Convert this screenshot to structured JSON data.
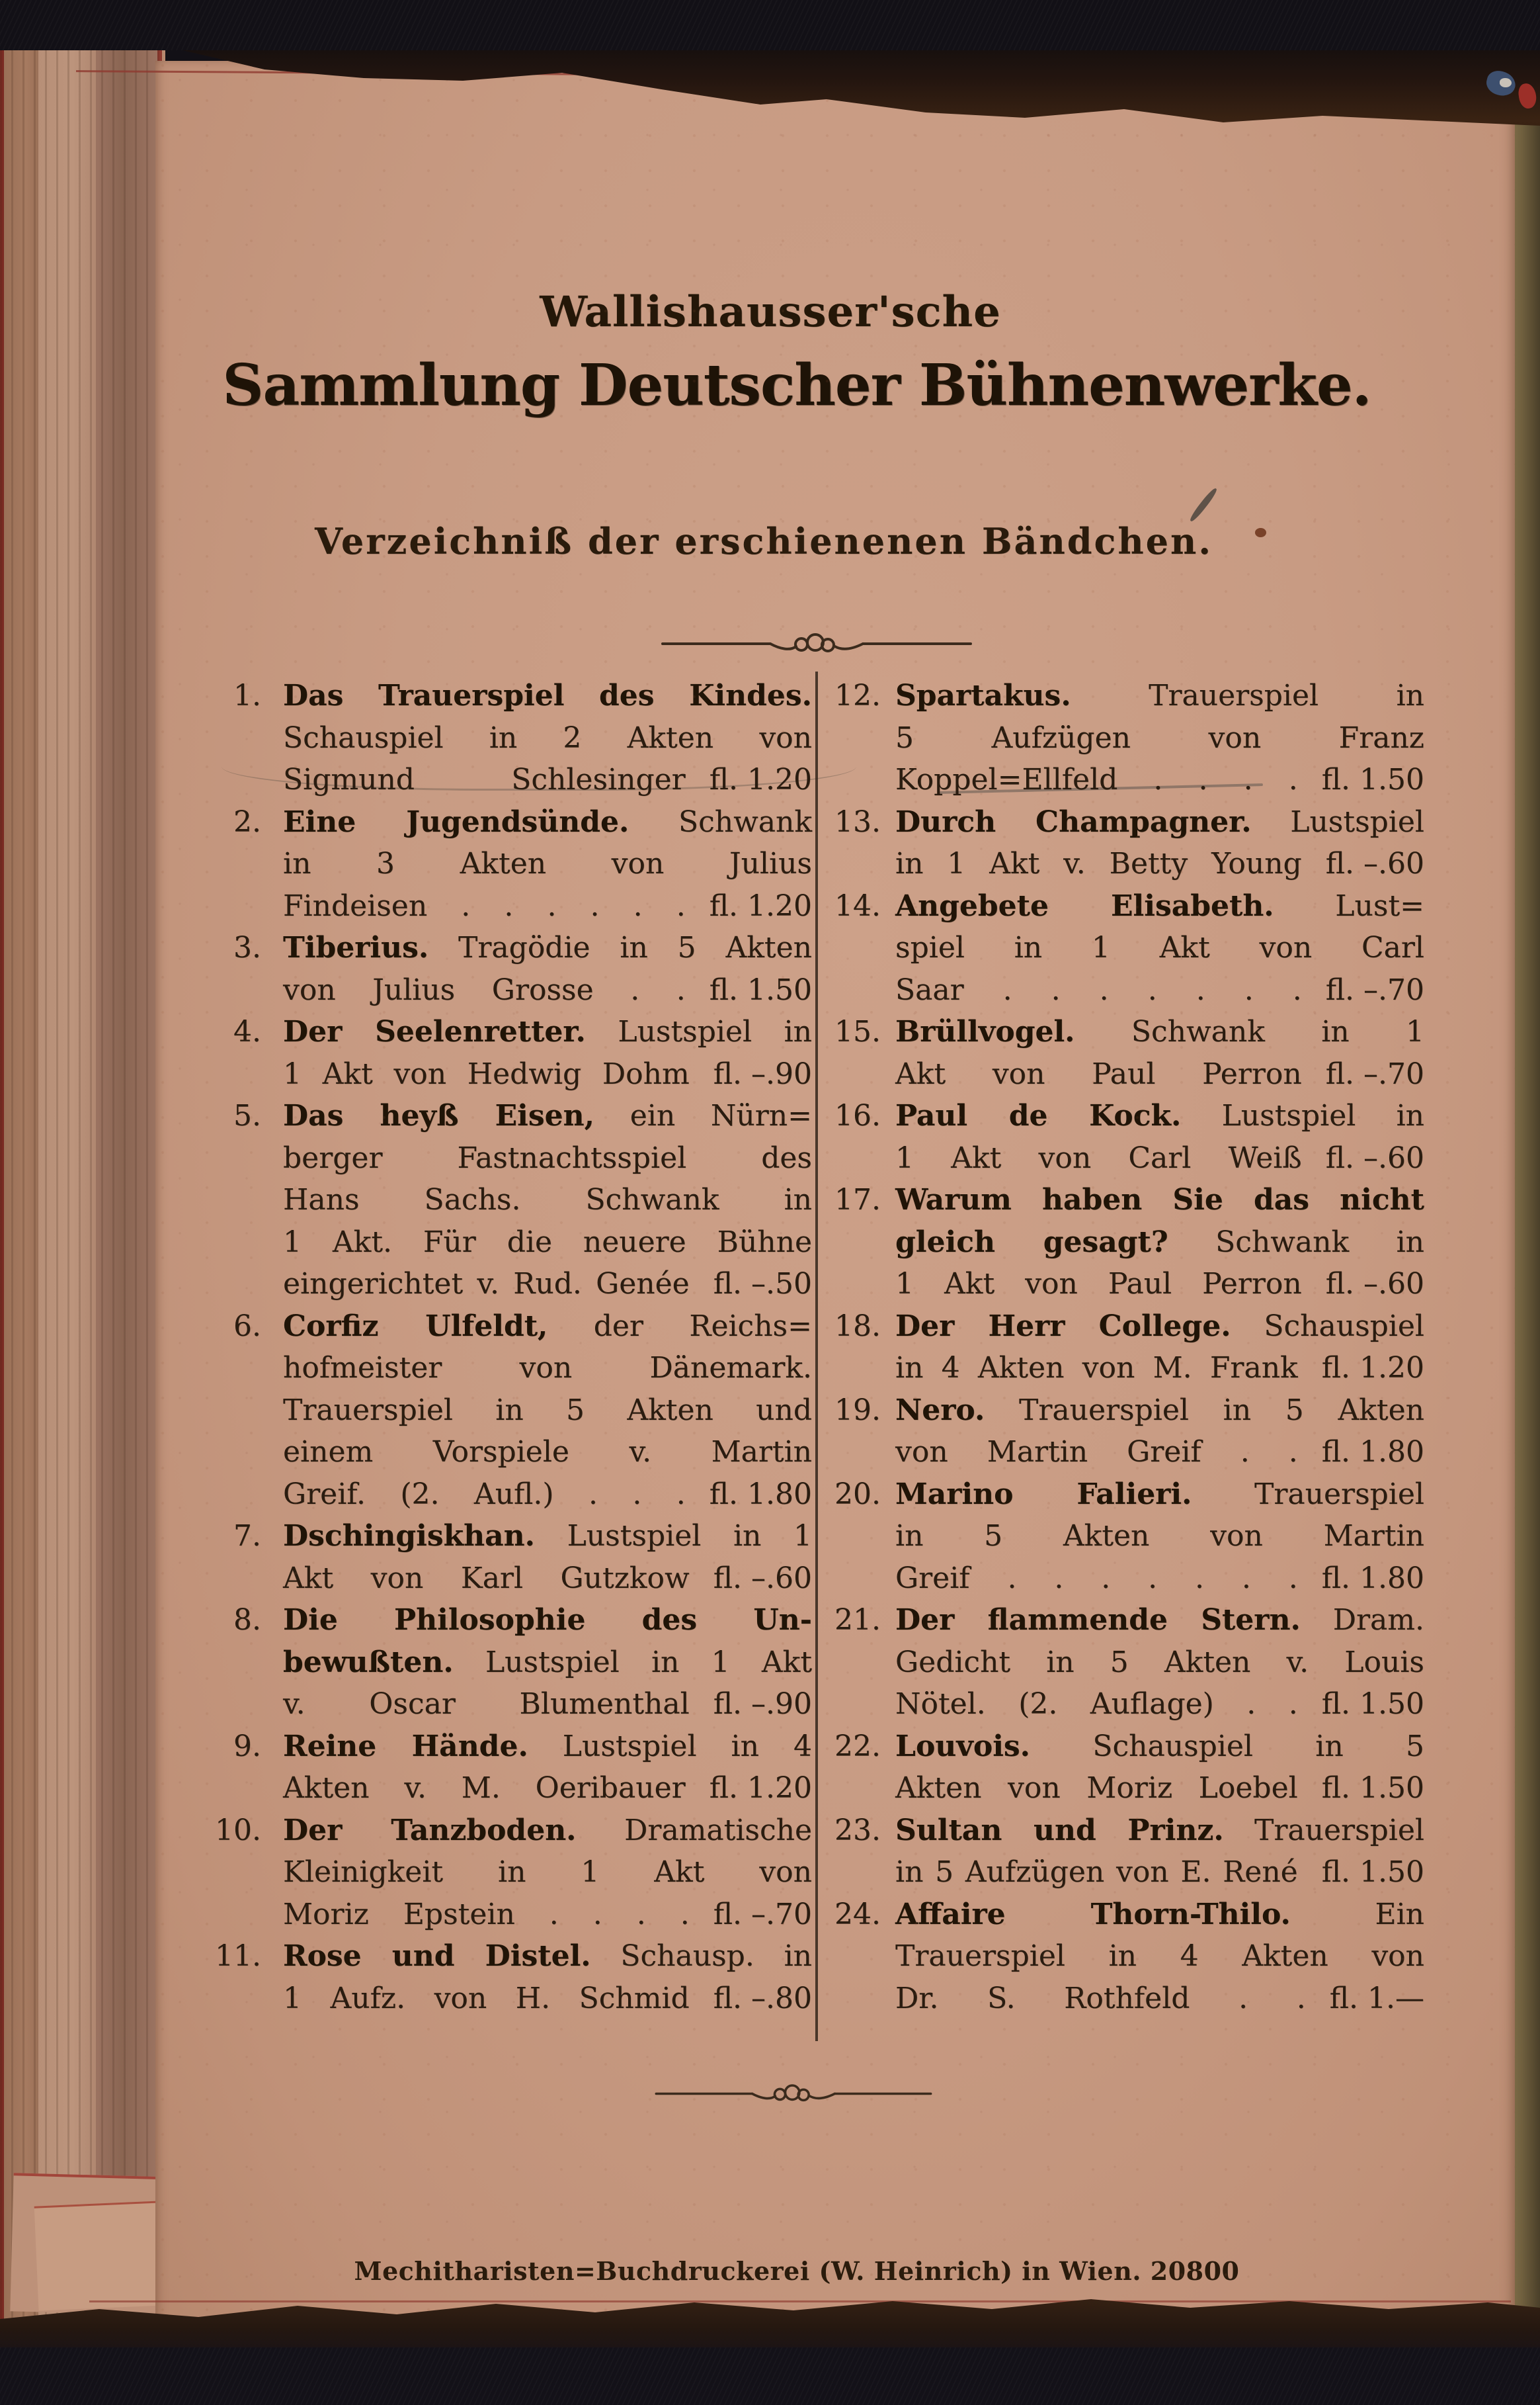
{
  "header": {
    "publisher": "Wallishausser'sche",
    "title": "Sammlung Deutscher Bühnenwerke.",
    "subtitle": "Verzeichniß der erschienenen Bändchen."
  },
  "footer": {
    "imprint": "Mechitharisten=Buchdruckerei (W. Heinrich) in Wien. 20800"
  },
  "colors": {
    "paper": "#c89b83",
    "ink": "#2a1c10",
    "red_edge_rule": "#8e3a30",
    "cover_cloth": "#131118",
    "right_edge": "#7d6c47"
  },
  "catalog": {
    "currency": "fl.",
    "columns": [
      {
        "entries": [
          {
            "n": "1.",
            "lines": [
              {
                "b": "Das Trauerspiel des Kindes."
              },
              {
                "t": "Schauspiel in 2 Akten von"
              },
              {
                "t": "Sigmund Schlesinger",
                "p": "fl. 1.20"
              }
            ]
          },
          {
            "n": "2.",
            "lines": [
              {
                "b": "Eine Jugendsünde.",
                "t": " Schwank"
              },
              {
                "t": "in 3 Akten von Julius"
              },
              {
                "t": "Findeisen . . . . . .",
                "p": "fl. 1.20"
              }
            ]
          },
          {
            "n": "3.",
            "lines": [
              {
                "b": "Tiberius.",
                "t": " Tragödie in 5 Akten"
              },
              {
                "t": "von Julius Grosse . .",
                "p": "fl. 1.50"
              }
            ]
          },
          {
            "n": "4.",
            "lines": [
              {
                "b": "Der Seelenretter.",
                "t": " Lustspiel in"
              },
              {
                "t": "1 Akt von Hedwig Dohm",
                "p": "fl. –.90"
              }
            ]
          },
          {
            "n": "5.",
            "lines": [
              {
                "b": "Das heyß Eisen,",
                "t": " ein Nürn="
              },
              {
                "t": "berger Fastnachtsspiel des"
              },
              {
                "t": "Hans Sachs. Schwank in"
              },
              {
                "t": "1 Akt. Für die neuere Bühne"
              },
              {
                "t": "eingerichtet v. Rud. Genée",
                "p": "fl. –.50"
              }
            ]
          },
          {
            "n": "6.",
            "lines": [
              {
                "b": "Corfiz Ulfeldt,",
                "t": " der Reichs="
              },
              {
                "t": "hofmeister von Dänemark."
              },
              {
                "t": "Trauerspiel in 5 Akten und"
              },
              {
                "t": "einem Vorspiele v. Martin"
              },
              {
                "t": "Greif. (2. Aufl.) . . .",
                "p": "fl. 1.80"
              }
            ]
          },
          {
            "n": "7.",
            "lines": [
              {
                "b": "Dschingiskhan.",
                "t": " Lustspiel in 1"
              },
              {
                "t": "Akt von Karl Gutzkow",
                "p": "fl. –.60"
              }
            ]
          },
          {
            "n": "8.",
            "lines": [
              {
                "b": "Die Philosophie des Un-"
              },
              {
                "b": "bewußten.",
                "t": " Lustspiel in 1 Akt"
              },
              {
                "t": "v. Oscar Blumenthal",
                "p": "fl. –.90"
              }
            ]
          },
          {
            "n": "9.",
            "lines": [
              {
                "b": "Reine Hände.",
                "t": " Lustspiel in 4"
              },
              {
                "t": "Akten v. M. Oeribauer",
                "p": "fl. 1.20"
              }
            ]
          },
          {
            "n": "10.",
            "lines": [
              {
                "b": "Der Tanzboden.",
                "t": " Dramatische"
              },
              {
                "t": "Kleinigkeit in 1 Akt von"
              },
              {
                "t": "Moriz Epstein . . . .",
                "p": "fl. –.70"
              }
            ]
          },
          {
            "n": "11.",
            "lines": [
              {
                "b": "Rose und Distel.",
                "t": " Schausp. in"
              },
              {
                "t": "1 Aufz. von H. Schmid",
                "p": "fl. –.80"
              }
            ]
          }
        ]
      },
      {
        "entries": [
          {
            "n": "12.",
            "lines": [
              {
                "b": "Spartakus.",
                "t": " Trauerspiel in"
              },
              {
                "t": "5 Aufzügen von Franz"
              },
              {
                "t": "Koppel=Ellfeld . . . .",
                "p": "fl. 1.50"
              }
            ]
          },
          {
            "n": "13.",
            "lines": [
              {
                "b": "Durch Champagner.",
                "t": " Lustspiel"
              },
              {
                "t": "in 1 Akt v. Betty Young",
                "p": "fl. –.60"
              }
            ]
          },
          {
            "n": "14.",
            "lines": [
              {
                "b": "Angebete Elisabeth.",
                "t": " Lust="
              },
              {
                "t": "spiel in 1 Akt von Carl"
              },
              {
                "t": "Saar . . . . . . .",
                "p": "fl. –.70"
              }
            ]
          },
          {
            "n": "15.",
            "lines": [
              {
                "b": "Brüllvogel.",
                "t": " Schwank in 1"
              },
              {
                "t": "Akt von Paul Perron",
                "p": "fl. –.70"
              }
            ]
          },
          {
            "n": "16.",
            "lines": [
              {
                "b": "Paul de Kock.",
                "t": " Lustspiel in"
              },
              {
                "t": "1 Akt von Carl Weiß",
                "p": "fl. –.60"
              }
            ]
          },
          {
            "n": "17.",
            "lines": [
              {
                "b": "Warum haben Sie das nicht"
              },
              {
                "b": "gleich gesagt?",
                "t": " Schwank in"
              },
              {
                "t": "1 Akt von Paul Perron",
                "p": "fl. –.60"
              }
            ]
          },
          {
            "n": "18.",
            "lines": [
              {
                "b": "Der Herr College.",
                "t": " Schauspiel"
              },
              {
                "t": "in 4 Akten von M. Frank",
                "p": "fl. 1.20"
              }
            ]
          },
          {
            "n": "19.",
            "lines": [
              {
                "b": "Nero.",
                "t": " Trauerspiel in 5 Akten"
              },
              {
                "t": "von Martin Greif . .",
                "p": "fl. 1.80"
              }
            ]
          },
          {
            "n": "20.",
            "lines": [
              {
                "b": "Marino Falieri.",
                "t": " Trauerspiel"
              },
              {
                "t": "in 5 Akten von Martin"
              },
              {
                "t": "Greif . . . . . . .",
                "p": "fl. 1.80"
              }
            ]
          },
          {
            "n": "21.",
            "lines": [
              {
                "b": "Der flammende Stern.",
                "t": " Dram."
              },
              {
                "t": "Gedicht in 5 Akten v. Louis"
              },
              {
                "t": "Nötel. (2. Auflage) . .",
                "p": "fl. 1.50"
              }
            ]
          },
          {
            "n": "22.",
            "lines": [
              {
                "b": "Louvois.",
                "t": " Schauspiel in 5"
              },
              {
                "t": "Akten von Moriz Loebel",
                "p": "fl. 1.50"
              }
            ]
          },
          {
            "n": "23.",
            "lines": [
              {
                "b": "Sultan und Prinz.",
                "t": " Trauerspiel"
              },
              {
                "t": "in 5 Aufzügen von E. René",
                "p": "fl. 1.50"
              }
            ]
          },
          {
            "n": "24.",
            "lines": [
              {
                "b": "Affaire Thorn-Thilo.",
                "t": " Ein"
              },
              {
                "t": "Trauerspiel in 4 Akten von"
              },
              {
                "t": "Dr. S. Rothfeld . .",
                "p": "fl. 1.—"
              }
            ]
          }
        ]
      }
    ]
  }
}
